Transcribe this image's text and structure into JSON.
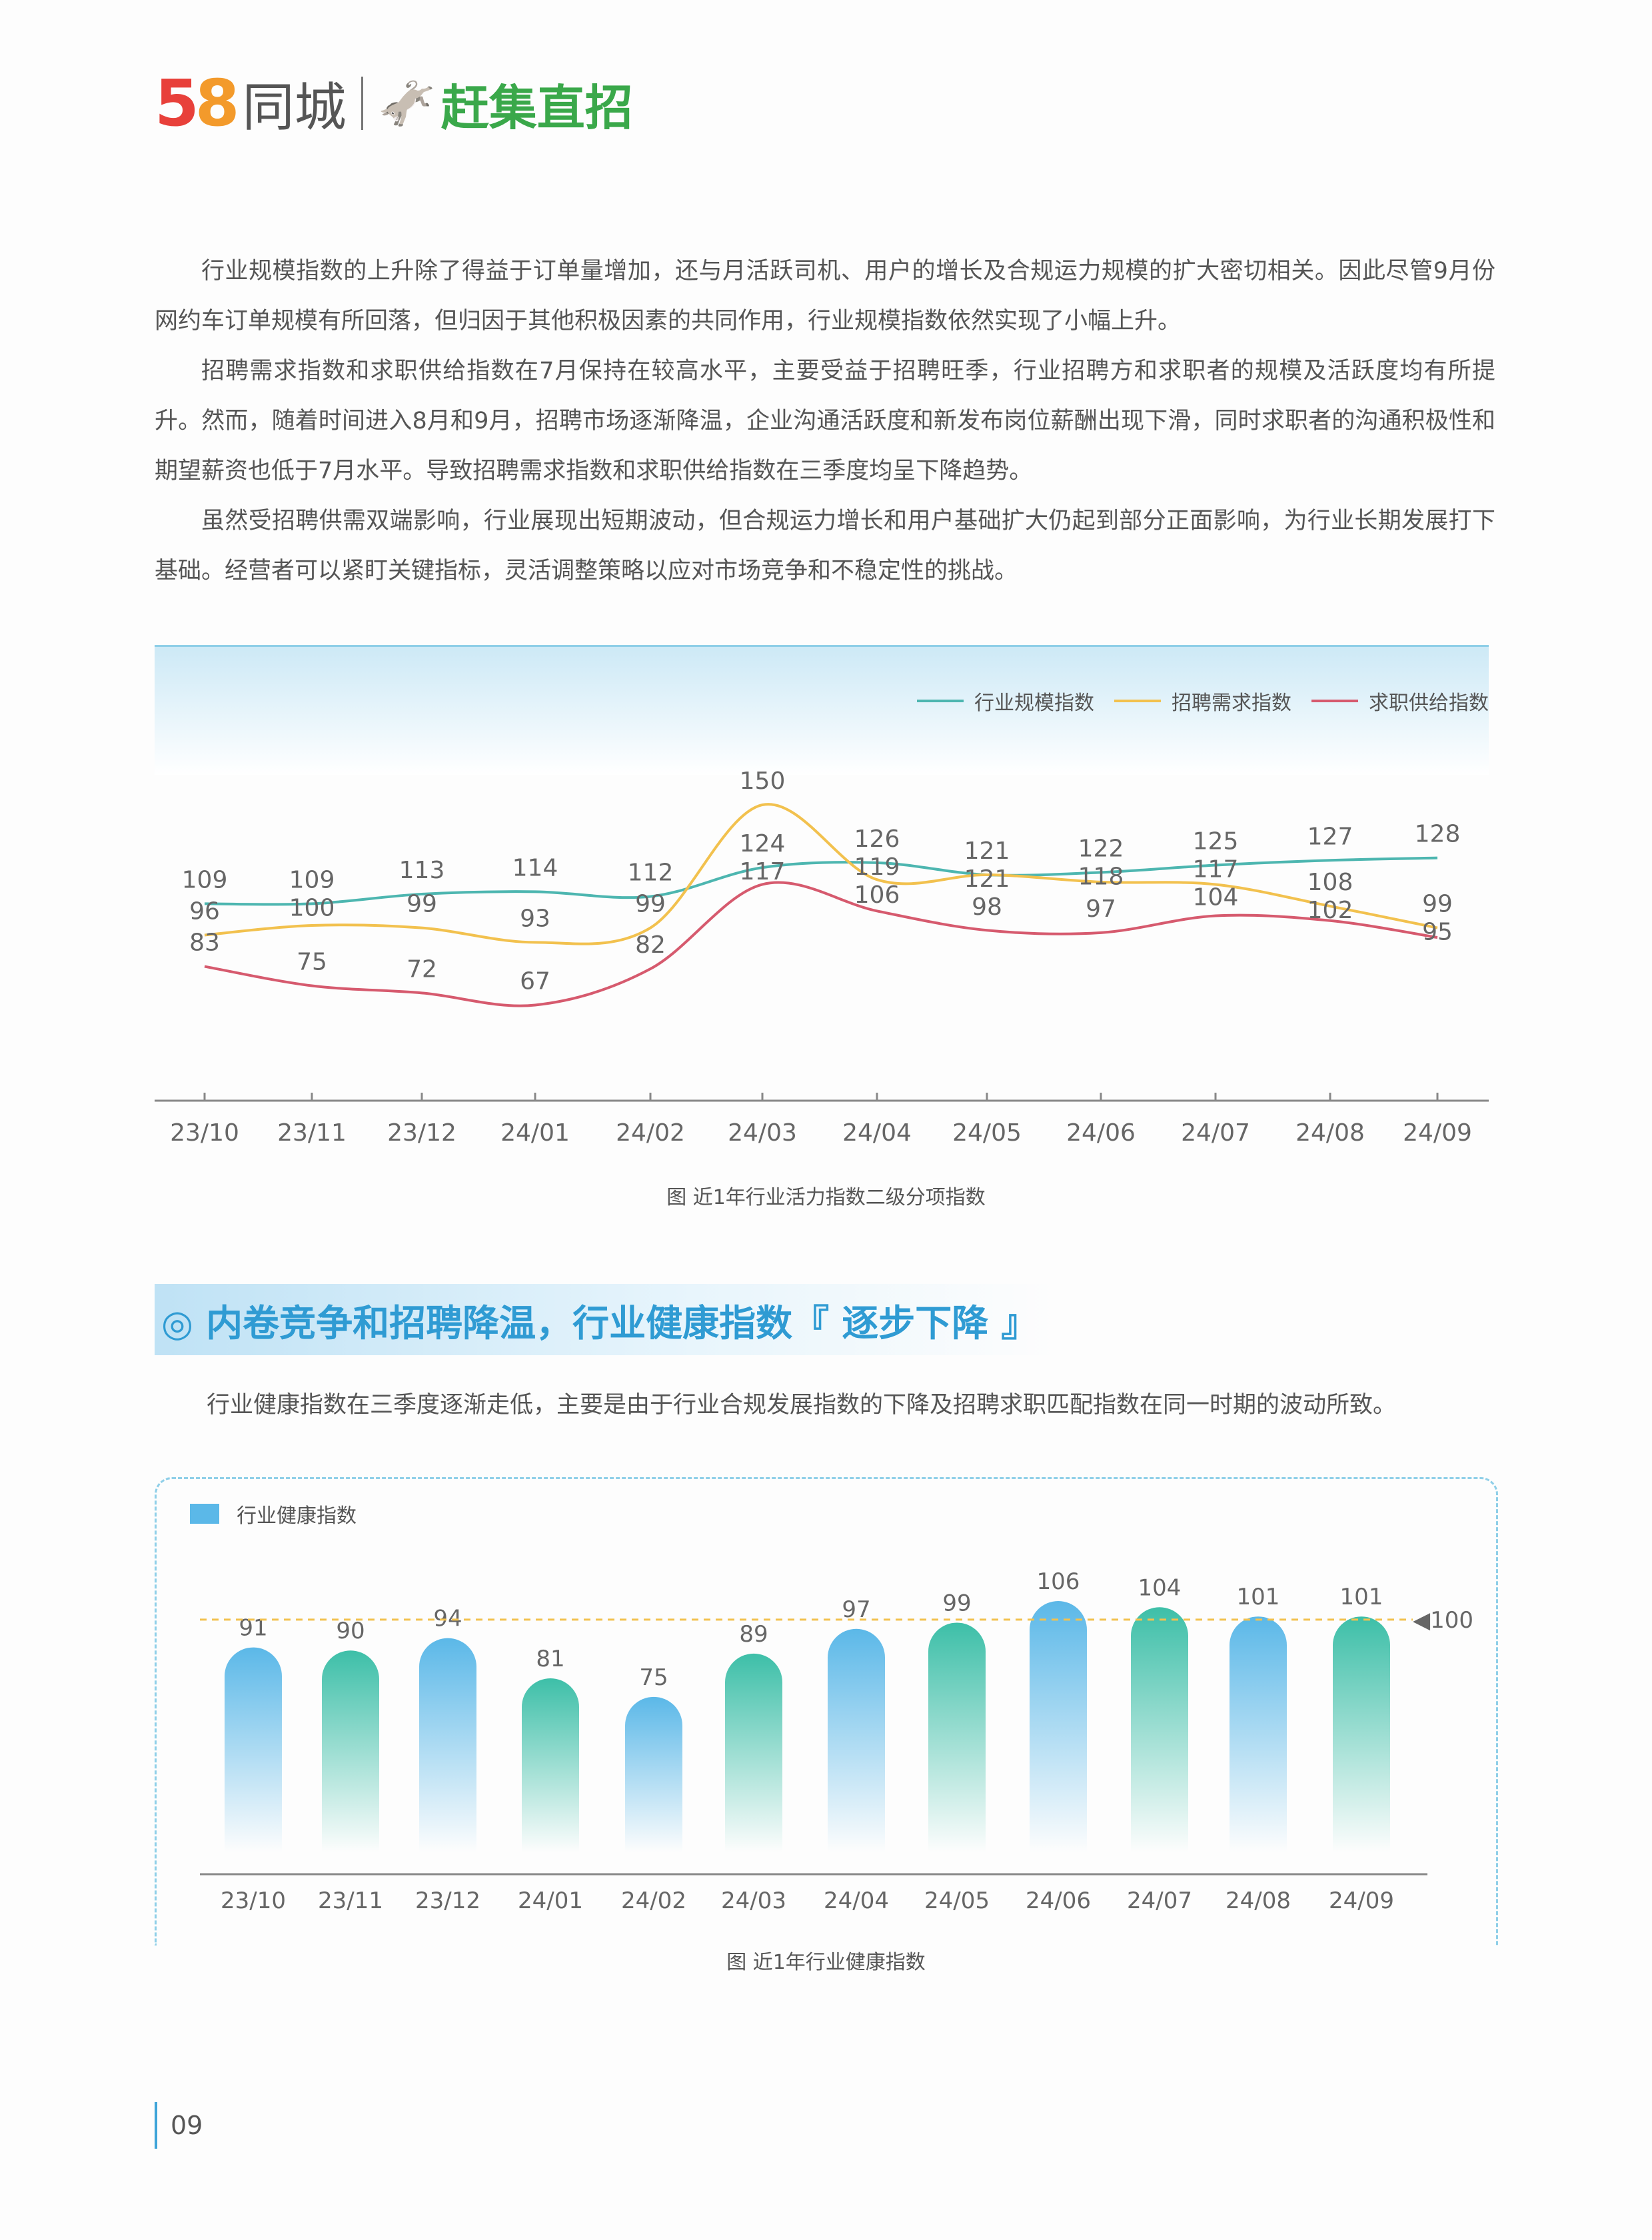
{
  "logo": {
    "brand1_digits": "58",
    "brand1_text": "同城",
    "brand2_text": "赶集直招"
  },
  "paragraphs": [
    "行业规模指数的上升除了得益于订单量增加，还与月活跃司机、用户的增长及合规运力规模的扩大密切相关。因此尽管9月份网约车订单规模有所回落，但归因于其他积极因素的共同作用，行业规模指数依然实现了小幅上升。",
    "招聘需求指数和求职供给指数在7月保持在较高水平，主要受益于招聘旺季，行业招聘方和求职者的规模及活跃度均有所提升。然而，随着时间进入8月和9月，招聘市场逐渐降温，企业沟通活跃度和新发布岗位薪酬出现下滑，同时求职者的沟通积极性和期望薪资也低于7月水平。导致招聘需求指数和求职供给指数在三季度均呈下降趋势。",
    "虽然受招聘供需双端影响，行业展现出短期波动，但合规运力增长和用户基础扩大仍起到部分正面影响，为行业长期发展打下基础。经营者可以紧盯关键指标，灵活调整策略以应对市场竞争和不稳定性的挑战。"
  ],
  "section": {
    "icon": "target-circle-icon",
    "title": "◎ 内卷竞争和招聘降温，行业健康指数『 逐步下降 』",
    "paragraph": "行业健康指数在三季度逐渐走低，主要是由于行业合规发展指数的下降及招聘求职匹配指数在同一时期的波动所致。"
  },
  "page_number": "09",
  "chart_data": [
    {
      "type": "line",
      "caption": "图 近1年行业活力指数二级分项指数",
      "categories": [
        "23/10",
        "23/11",
        "23/12",
        "24/01",
        "24/02",
        "24/03",
        "24/04",
        "24/05",
        "24/06",
        "24/07",
        "24/08",
        "24/09"
      ],
      "legend_position": "top-right",
      "grid": false,
      "series": [
        {
          "name": "行业规模指数",
          "color": "#4db6b0",
          "values": [
            109,
            109,
            113,
            114,
            112,
            124,
            126,
            121,
            122,
            125,
            127,
            128
          ]
        },
        {
          "name": "招聘需求指数",
          "color": "#f2c14e",
          "values": [
            96,
            100,
            99,
            93,
            99,
            150,
            119,
            121,
            118,
            117,
            108,
            99
          ]
        },
        {
          "name": "求职供给指数",
          "color": "#d65a6e",
          "values": [
            83,
            75,
            72,
            67,
            82,
            117,
            106,
            98,
            97,
            104,
            102,
            95
          ]
        }
      ]
    },
    {
      "type": "bar",
      "caption": "图 近1年行业健康指数",
      "categories": [
        "23/10",
        "23/11",
        "23/12",
        "24/01",
        "24/02",
        "24/03",
        "24/04",
        "24/05",
        "24/06",
        "24/07",
        "24/08",
        "24/09"
      ],
      "series": [
        {
          "name": "行业健康指数",
          "values": [
            91,
            90,
            94,
            81,
            75,
            89,
            97,
            99,
            106,
            104,
            101,
            101
          ]
        }
      ],
      "reference_line": {
        "value": 100,
        "label": "◀100",
        "color": "#f2c14e"
      },
      "bar_colors": [
        "#5bb8e8",
        "#3dbfa8"
      ],
      "legend_position": "top-left",
      "grid": false
    }
  ]
}
